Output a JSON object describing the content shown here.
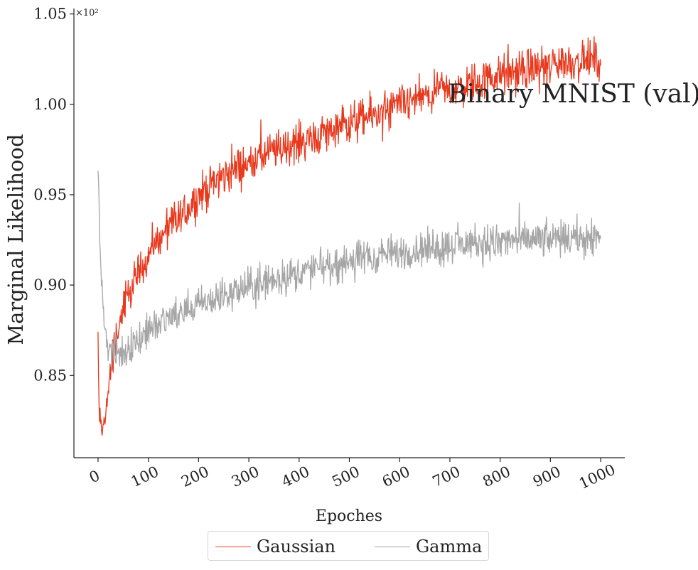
{
  "chart_data": {
    "type": "line",
    "title": "Binary MNIST (val)",
    "xlabel": "Epoches",
    "ylabel": "Marginal Likelihood",
    "scale_label": "×10²",
    "xlim": [
      -48,
      1048
    ],
    "ylim": [
      80.45,
      105.3
    ],
    "xticks": [
      "0",
      "100",
      "200",
      "300",
      "400",
      "500",
      "600",
      "700",
      "800",
      "900",
      "1000"
    ],
    "yticks": [
      "0.85",
      "0.90",
      "0.95",
      "1.00",
      "1.05"
    ],
    "ytick_values": [
      85,
      90,
      95,
      100,
      105
    ],
    "grid": false,
    "legend_position": "bottom-center",
    "series": [
      {
        "name": "Gaussian",
        "color": "#e8391e",
        "noise": 0.85,
        "x": [
          0,
          2,
          5,
          8,
          10,
          12,
          15,
          20,
          25,
          30,
          35,
          40,
          50,
          60,
          70,
          80,
          90,
          100,
          120,
          140,
          160,
          180,
          200,
          220,
          250,
          280,
          300,
          350,
          400,
          450,
          500,
          550,
          600,
          650,
          700,
          750,
          800,
          850,
          900,
          950,
          1000
        ],
        "y": [
          87.0,
          83.0,
          82.3,
          81.8,
          82.2,
          82.5,
          83.0,
          84.0,
          85.2,
          86.2,
          87.0,
          87.6,
          88.5,
          89.3,
          90.0,
          90.6,
          91.1,
          91.7,
          92.4,
          93.1,
          93.7,
          94.3,
          94.9,
          95.4,
          96.0,
          96.5,
          96.8,
          97.4,
          97.9,
          98.4,
          98.9,
          99.4,
          99.9,
          100.4,
          100.8,
          101.2,
          101.6,
          101.9,
          102.2,
          102.4,
          102.5
        ]
      },
      {
        "name": "Gamma",
        "color": "#a6a6a6",
        "noise": 0.75,
        "x": [
          0,
          3,
          6,
          10,
          15,
          20,
          30,
          40,
          50,
          60,
          80,
          100,
          150,
          200,
          250,
          300,
          350,
          400,
          450,
          500,
          550,
          600,
          650,
          700,
          750,
          800,
          850,
          900,
          950,
          1000
        ],
        "y": [
          96.5,
          93.0,
          90.5,
          89.0,
          87.5,
          86.5,
          86.2,
          86.1,
          86.3,
          86.6,
          87.0,
          87.5,
          88.3,
          88.9,
          89.4,
          89.9,
          90.3,
          90.7,
          91.0,
          91.3,
          91.6,
          91.8,
          92.0,
          92.2,
          92.3,
          92.4,
          92.5,
          92.5,
          92.6,
          92.6
        ]
      }
    ]
  }
}
